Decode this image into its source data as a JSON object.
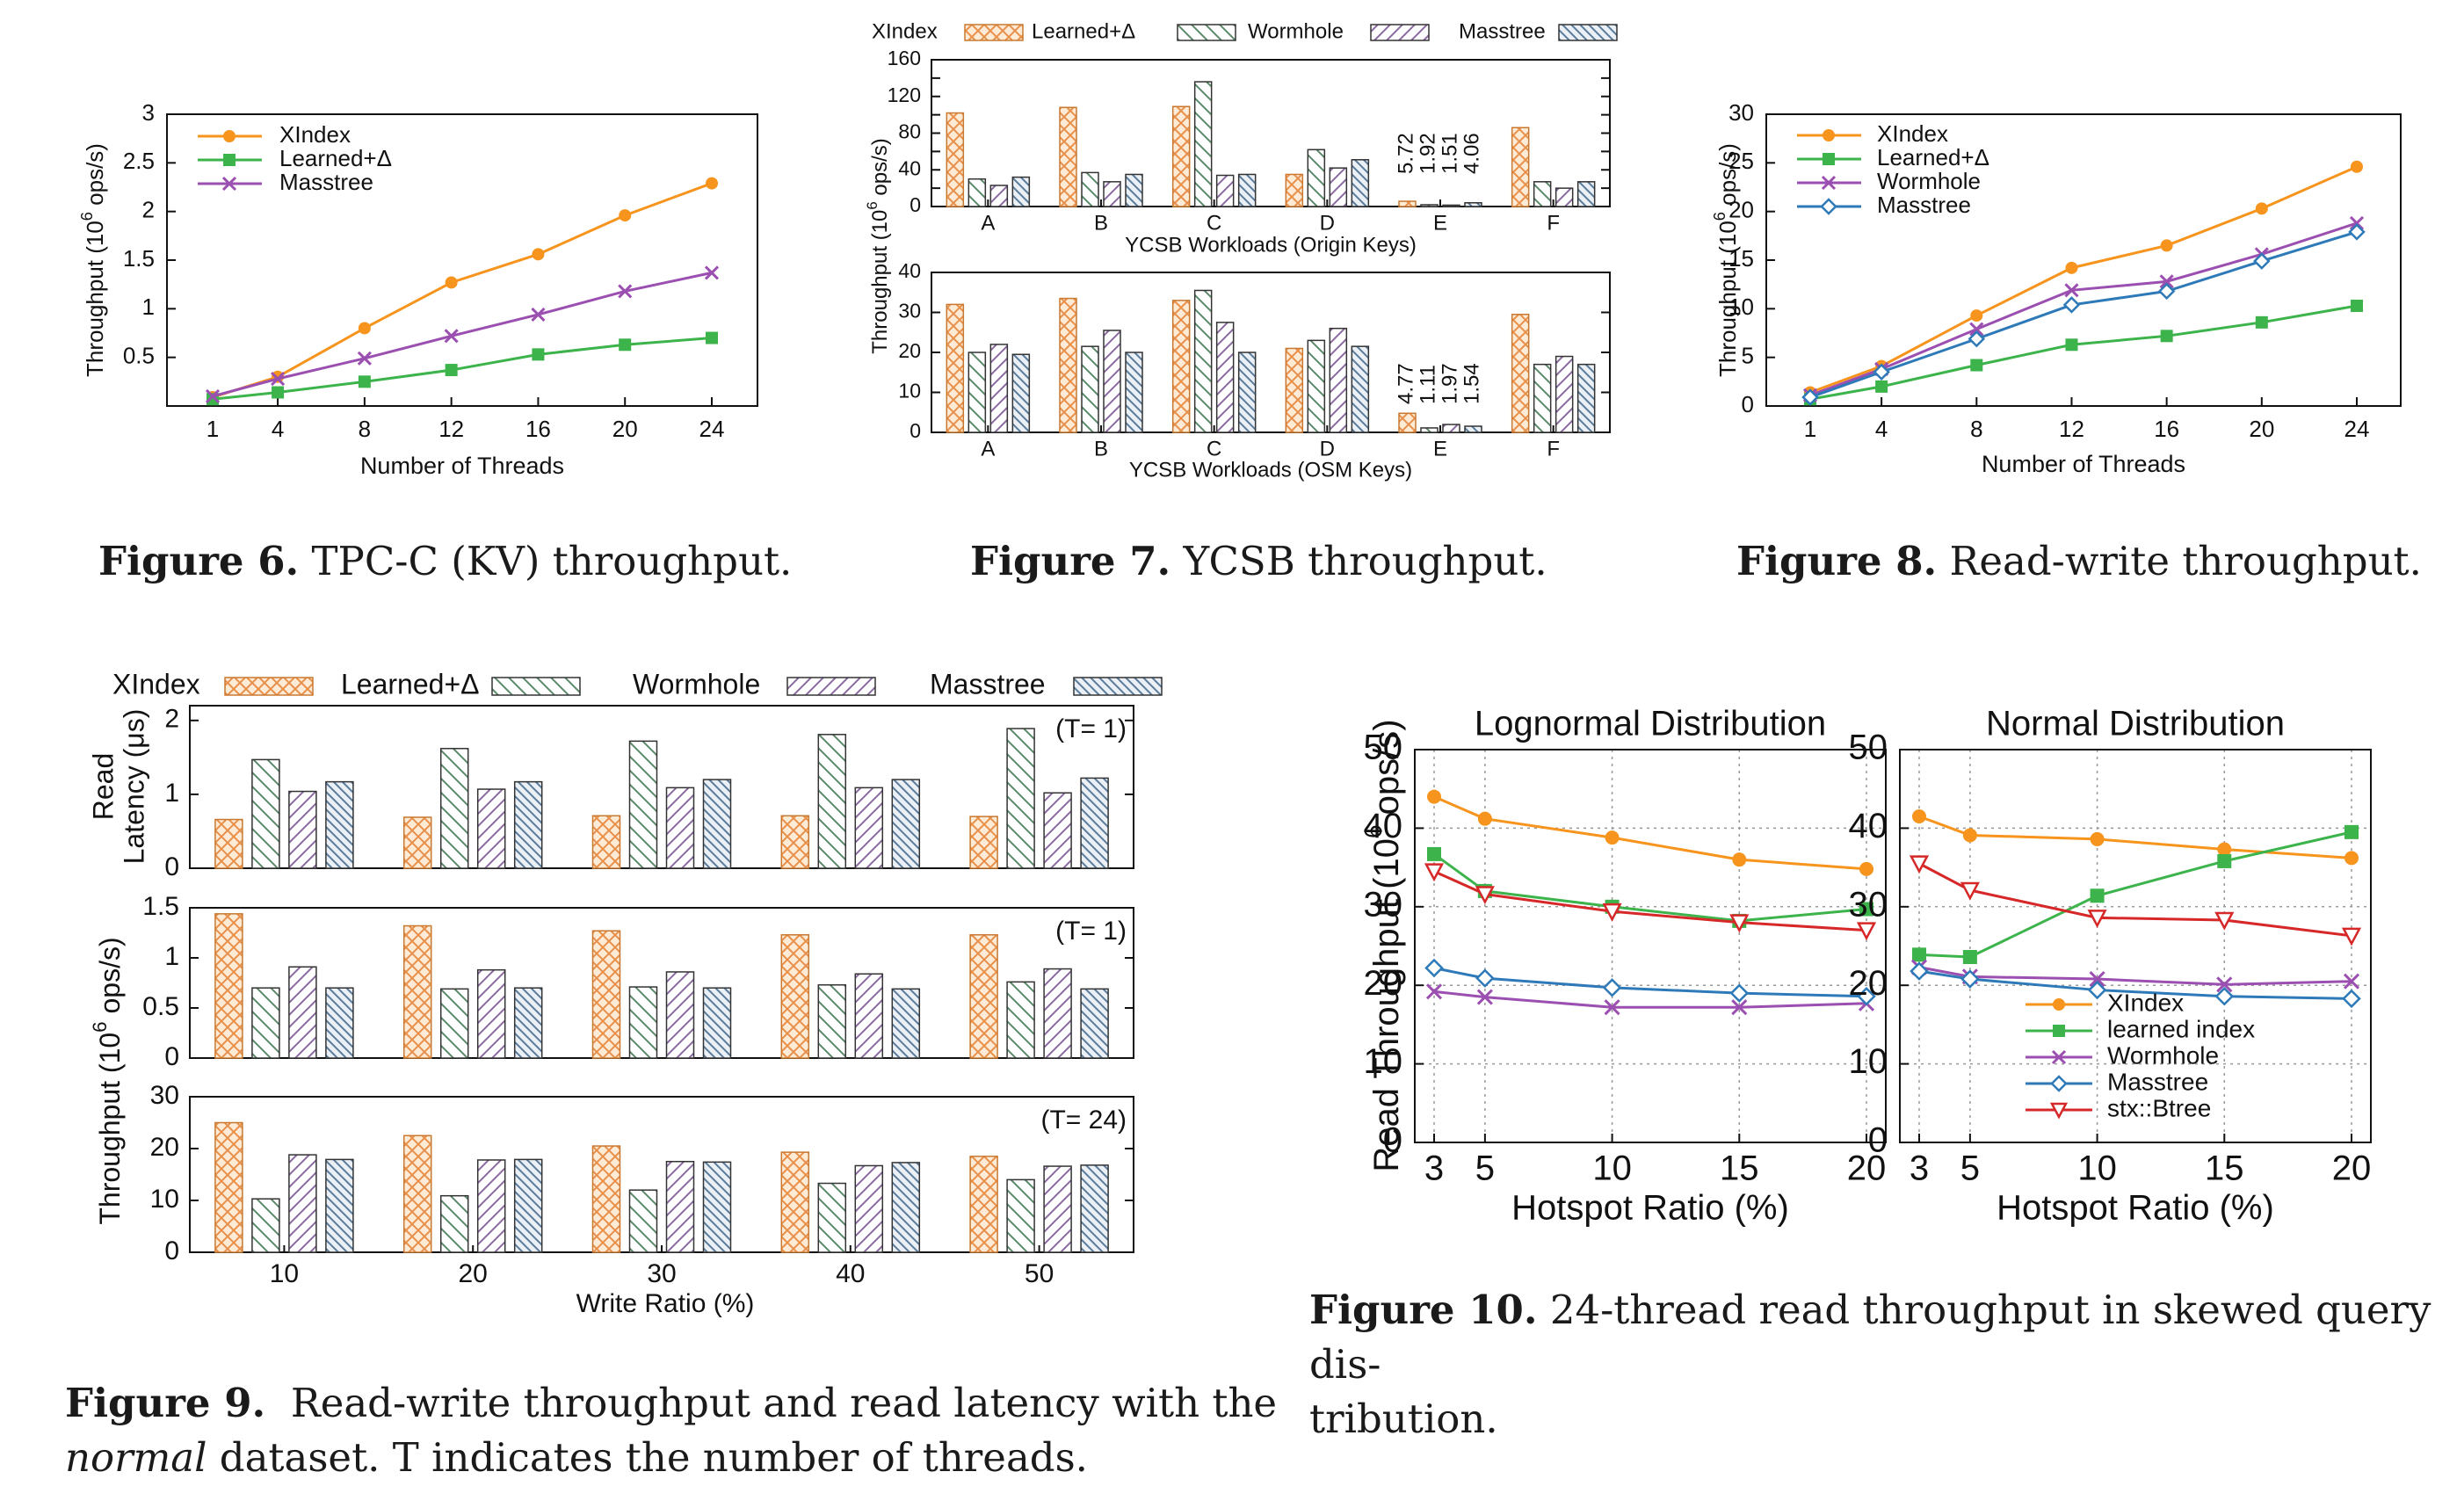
{
  "colors": {
    "xindex": "#f7941d",
    "learned": "#3cb44b",
    "wormhole": "#9b4fb0",
    "masstree": "#2e7ab8",
    "stx": "#d62828",
    "bar_xindex": "#e8904a",
    "bar_learned": "#5a8a6a",
    "bar_wormhole": "#8a6aa0",
    "bar_masstree": "#5a7a9a"
  },
  "captions": {
    "fig6": {
      "label": "Figure 6.",
      "text": "TPC-C (KV) throughput."
    },
    "fig7": {
      "label": "Figure 7.",
      "text": "YCSB throughput."
    },
    "fig8": {
      "label": "Figure 8.",
      "text": "Read-write throughput."
    },
    "fig9": {
      "label": "Figure 9.",
      "text1": "Read-write throughput and read latency with the",
      "text2a": "normal",
      "text2b": "dataset. T indicates the number of threads."
    },
    "fig10": {
      "label": "Figure 10.",
      "text1": "24-thread read throughput in skewed query dis-",
      "text2": "tribution."
    }
  },
  "chart_data": [
    {
      "id": "fig6",
      "type": "line",
      "xlabel": "Number of Threads",
      "ylabel": "Throughput (10^6 ops/s)",
      "x": [
        1,
        4,
        8,
        12,
        16,
        20,
        24
      ],
      "xticks": [
        "1",
        "4",
        "8",
        "12",
        "16",
        "20",
        "24"
      ],
      "ylim": [
        0,
        3
      ],
      "yticks": [
        "0.5",
        "1",
        "1.5",
        "2",
        "2.5",
        "3"
      ],
      "legend": "top-left",
      "series": [
        {
          "name": "XIndex",
          "key": "xindex",
          "marker": "circle",
          "values": [
            0.09,
            0.3,
            0.8,
            1.27,
            1.56,
            1.96,
            2.29
          ]
        },
        {
          "name": "Learned+Δ",
          "key": "learned",
          "marker": "square",
          "values": [
            0.07,
            0.14,
            0.25,
            0.37,
            0.53,
            0.63,
            0.7
          ]
        },
        {
          "name": "Masstree",
          "key": "wormhole",
          "marker": "x",
          "values": [
            0.1,
            0.28,
            0.49,
            0.72,
            0.94,
            1.18,
            1.37
          ]
        }
      ]
    },
    {
      "id": "fig7",
      "type": "bar",
      "legend_entries": [
        "XIndex",
        "Learned+Δ",
        "Wormhole",
        "Masstree"
      ],
      "categories": [
        "A",
        "B",
        "C",
        "D",
        "E",
        "F"
      ],
      "panels": [
        {
          "xlabel": "YCSB Workloads (Origin Keys)",
          "ylim": [
            0,
            160
          ],
          "yticks": [
            "0",
            "20",
            "40",
            "60",
            "80",
            "100",
            "120",
            "140",
            "160"
          ],
          "ytick_labels": [
            "0",
            "",
            "40",
            "",
            "80",
            "",
            "120",
            "",
            "160"
          ],
          "series": [
            {
              "name": "XIndex",
              "values": [
                102,
                108,
                109,
                35,
                5.72,
                86
              ]
            },
            {
              "name": "Learned+Δ",
              "values": [
                30,
                37,
                136,
                62,
                1.92,
                27
              ]
            },
            {
              "name": "Wormhole",
              "values": [
                23,
                27,
                34,
                42,
                1.51,
                20
              ]
            },
            {
              "name": "Masstree",
              "values": [
                32,
                35,
                35,
                51,
                4.06,
                27
              ]
            }
          ],
          "annotations": [
            "5.72",
            "1.92",
            "1.51",
            "4.06"
          ]
        },
        {
          "xlabel": "YCSB Workloads (OSM Keys)",
          "ylim": [
            0,
            40
          ],
          "yticks": [
            "0",
            "10",
            "20",
            "30",
            "40"
          ],
          "series": [
            {
              "name": "XIndex",
              "values": [
                32,
                33.5,
                33,
                21,
                4.77,
                29.5
              ]
            },
            {
              "name": "Learned+Δ",
              "values": [
                20,
                21.5,
                35.5,
                23,
                1.11,
                17
              ]
            },
            {
              "name": "Wormhole",
              "values": [
                22,
                25.5,
                27.5,
                26,
                1.97,
                19
              ]
            },
            {
              "name": "Masstree",
              "values": [
                19.5,
                20,
                20,
                21.5,
                1.54,
                17
              ]
            }
          ],
          "annotations": [
            "4.77",
            "1.11",
            "1.97",
            "1.54"
          ]
        }
      ],
      "ylabel": "Throughput (10^6 ops/s)"
    },
    {
      "id": "fig8",
      "type": "line",
      "xlabel": "Number of Threads",
      "ylabel": "Throughput (10^6 ops/s)",
      "x": [
        1,
        4,
        8,
        12,
        16,
        20,
        24
      ],
      "xticks": [
        "1",
        "4",
        "8",
        "12",
        "16",
        "20",
        "24"
      ],
      "ylim": [
        0,
        30
      ],
      "yticks": [
        "0",
        "5",
        "10",
        "15",
        "20",
        "25",
        "30"
      ],
      "legend": "top-left",
      "series": [
        {
          "name": "XIndex",
          "key": "xindex",
          "marker": "circle",
          "values": [
            1.4,
            4.1,
            9.3,
            14.2,
            16.5,
            20.3,
            24.6
          ]
        },
        {
          "name": "Learned+Δ",
          "key": "learned",
          "marker": "square",
          "values": [
            0.7,
            2.0,
            4.2,
            6.3,
            7.2,
            8.6,
            10.3
          ]
        },
        {
          "name": "Wormhole",
          "key": "wormhole",
          "marker": "x",
          "values": [
            1.1,
            3.8,
            7.9,
            11.9,
            12.8,
            15.6,
            18.8
          ]
        },
        {
          "name": "Masstree",
          "key": "masstree",
          "marker": "diamond",
          "values": [
            0.9,
            3.5,
            6.9,
            10.4,
            11.8,
            14.9,
            17.9
          ]
        }
      ]
    },
    {
      "id": "fig9",
      "type": "bar",
      "legend_entries": [
        "XIndex",
        "Learned+Δ",
        "Wormhole",
        "Masstree"
      ],
      "categories": [
        "10",
        "20",
        "30",
        "40",
        "50"
      ],
      "xlabel": "Write Ratio (%)",
      "ylabel_top": "Read Latency (μs)",
      "ylabel_bottom": "Throughput (10^6 ops/s)",
      "panels": [
        {
          "tag": "(T=  1)",
          "ylim": [
            0,
            2.2
          ],
          "yticks": [
            "0",
            "1",
            "2"
          ],
          "ytick_values": [
            0,
            1,
            2
          ],
          "series": [
            {
              "name": "XIndex",
              "values": [
                0.66,
                0.69,
                0.71,
                0.71,
                0.7
              ]
            },
            {
              "name": "Learned+Δ",
              "values": [
                1.47,
                1.62,
                1.72,
                1.81,
                1.89
              ]
            },
            {
              "name": "Wormhole",
              "values": [
                1.04,
                1.07,
                1.09,
                1.09,
                1.02
              ]
            },
            {
              "name": "Masstree",
              "values": [
                1.17,
                1.17,
                1.2,
                1.2,
                1.22
              ]
            }
          ]
        },
        {
          "tag": "(T=  1)",
          "ylim": [
            0,
            1.5
          ],
          "yticks": [
            "0",
            "0.5",
            "1",
            "1.5"
          ],
          "ytick_values": [
            0,
            0.5,
            1,
            1.5
          ],
          "series": [
            {
              "name": "XIndex",
              "values": [
                1.44,
                1.32,
                1.27,
                1.23,
                1.23
              ]
            },
            {
              "name": "Learned+Δ",
              "values": [
                0.7,
                0.69,
                0.71,
                0.73,
                0.76
              ]
            },
            {
              "name": "Wormhole",
              "values": [
                0.91,
                0.88,
                0.86,
                0.84,
                0.89
              ]
            },
            {
              "name": "Masstree",
              "values": [
                0.7,
                0.7,
                0.7,
                0.69,
                0.69
              ]
            }
          ]
        },
        {
          "tag": "(T= 24)",
          "ylim": [
            0,
            30
          ],
          "yticks": [
            "0",
            "10",
            "20",
            "30"
          ],
          "ytick_values": [
            0,
            10,
            20,
            30
          ],
          "series": [
            {
              "name": "XIndex",
              "values": [
                25,
                22.5,
                20.5,
                19.3,
                18.5
              ]
            },
            {
              "name": "Learned+Δ",
              "values": [
                10.3,
                10.9,
                12,
                13.3,
                14
              ]
            },
            {
              "name": "Wormhole",
              "values": [
                18.8,
                17.8,
                17.5,
                16.7,
                16.6
              ]
            },
            {
              "name": "Masstree",
              "values": [
                17.9,
                17.9,
                17.4,
                17.3,
                16.8
              ]
            }
          ]
        }
      ]
    },
    {
      "id": "fig10",
      "type": "line",
      "ylabel": "Read Throughput (10^6 ops/s)",
      "xlabel": "Hotspot Ratio (%)",
      "x": [
        3,
        5,
        10,
        15,
        20
      ],
      "xticks": [
        "3",
        "5",
        "10",
        "15",
        "20"
      ],
      "ylim": [
        0,
        50
      ],
      "yticks": [
        "0",
        "10",
        "20",
        "30",
        "40",
        "50"
      ],
      "legend": "bottom-right",
      "legend_entries": [
        "XIndex",
        "learned index",
        "Wormhole",
        "Masstree",
        "stx::Btree"
      ],
      "panels": [
        {
          "title": "Lognormal Distribution",
          "series": [
            {
              "name": "XIndex",
              "key": "xindex",
              "marker": "circle",
              "values": [
                44,
                41.2,
                38.8,
                36,
                34.8
              ]
            },
            {
              "name": "learned index",
              "key": "learned",
              "marker": "square",
              "values": [
                36.7,
                32,
                30,
                28.2,
                29.7
              ]
            },
            {
              "name": "Wormhole",
              "key": "wormhole",
              "marker": "x",
              "values": [
                19.2,
                18.5,
                17.2,
                17.2,
                17.7
              ]
            },
            {
              "name": "Masstree",
              "key": "masstree",
              "marker": "diamond",
              "values": [
                22.2,
                20.9,
                19.7,
                19,
                18.6
              ]
            },
            {
              "name": "stx::Btree",
              "key": "stx",
              "marker": "triangle",
              "values": [
                34.5,
                31.6,
                29.4,
                28,
                27
              ]
            }
          ]
        },
        {
          "title": "Normal Distribution",
          "series": [
            {
              "name": "XIndex",
              "key": "xindex",
              "marker": "circle",
              "values": [
                41.5,
                39.1,
                38.6,
                37.3,
                36.2
              ]
            },
            {
              "name": "learned index",
              "key": "learned",
              "marker": "square",
              "values": [
                23.9,
                23.6,
                31.4,
                35.8,
                39.5
              ]
            },
            {
              "name": "Wormhole",
              "key": "wormhole",
              "marker": "x",
              "values": [
                22.3,
                21.1,
                20.8,
                20.1,
                20.5
              ]
            },
            {
              "name": "Masstree",
              "key": "masstree",
              "marker": "diamond",
              "values": [
                21.8,
                20.8,
                19.4,
                18.6,
                18.3
              ]
            },
            {
              "name": "stx::Btree",
              "key": "stx",
              "marker": "triangle",
              "values": [
                35.5,
                32.1,
                28.6,
                28.3,
                26.3
              ]
            }
          ]
        }
      ]
    }
  ]
}
